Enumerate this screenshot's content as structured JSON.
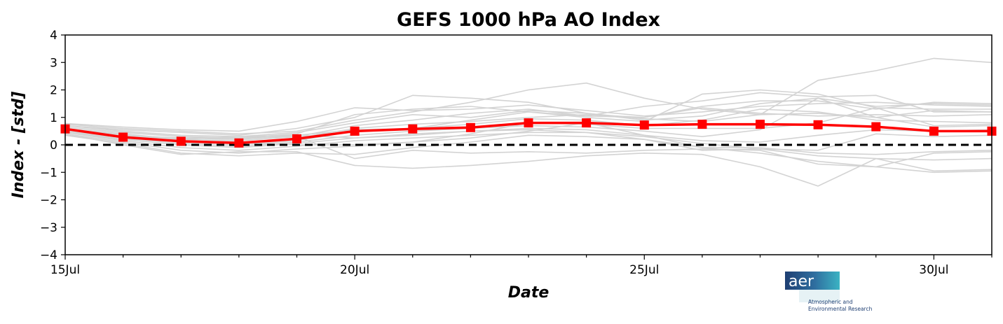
{
  "chart_data": {
    "type": "line",
    "title": "GEFS 1000 hPa AO Index",
    "xlabel": "Date",
    "ylabel": "Index - [std]",
    "x": [
      15,
      16,
      17,
      18,
      19,
      20,
      21,
      22,
      23,
      24,
      25,
      26,
      27,
      28,
      29,
      30,
      31
    ],
    "x_unit": "Jul",
    "xlim": [
      15,
      31
    ],
    "ylim": [
      -4,
      4
    ],
    "xticks_major": [
      {
        "value": 15,
        "label": "15Jul"
      },
      {
        "value": 20,
        "label": "20Jul"
      },
      {
        "value": 25,
        "label": "25Jul"
      },
      {
        "value": 30,
        "label": "30Jul"
      }
    ],
    "yticks": [
      {
        "value": 4,
        "label": "4"
      },
      {
        "value": 3,
        "label": "3"
      },
      {
        "value": 2,
        "label": "2"
      },
      {
        "value": 1,
        "label": "1"
      },
      {
        "value": 0,
        "label": "0"
      },
      {
        "value": -1,
        "label": "−1"
      },
      {
        "value": -2,
        "label": "−2"
      },
      {
        "value": -3,
        "label": "−3"
      },
      {
        "value": -4,
        "label": "−4"
      }
    ],
    "reference_line": {
      "y": 0,
      "style": "dashed",
      "color": "#000000"
    },
    "mean_series": {
      "color": "#ff0000",
      "marker": "square",
      "values": [
        0.58,
        0.28,
        0.13,
        0.07,
        0.22,
        0.5,
        0.58,
        0.63,
        0.8,
        0.8,
        0.72,
        0.75,
        0.75,
        0.73,
        0.66,
        0.5,
        0.5
      ]
    },
    "ensemble_color": "#d3d3d3",
    "ensemble_members": [
      [
        0.78,
        0.65,
        0.55,
        0.5,
        0.85,
        1.35,
        1.25,
        1.3,
        1.45,
        1.25,
        1.05,
        1.2,
        1.4,
        1.5,
        1.55,
        1.45,
        1.4
      ],
      [
        0.7,
        0.55,
        0.45,
        0.35,
        0.6,
        1.0,
        1.8,
        1.7,
        1.55,
        1.15,
        0.9,
        1.05,
        1.5,
        1.7,
        1.4,
        1.5,
        1.45
      ],
      [
        0.75,
        0.6,
        0.5,
        0.4,
        0.5,
        0.9,
        1.2,
        1.55,
        2.0,
        2.25,
        1.7,
        1.3,
        1.1,
        2.35,
        2.7,
        3.15,
        3.0
      ],
      [
        0.65,
        0.45,
        0.3,
        0.25,
        0.4,
        1.1,
        1.3,
        1.4,
        1.2,
        1.0,
        0.85,
        1.85,
        2.0,
        1.85,
        1.35,
        1.3,
        1.3
      ],
      [
        0.6,
        0.4,
        0.2,
        0.15,
        0.3,
        0.7,
        0.9,
        1.15,
        1.3,
        1.05,
        1.4,
        1.6,
        1.9,
        1.75,
        1.8,
        1.2,
        1.2
      ],
      [
        0.55,
        0.35,
        0.15,
        0.05,
        0.25,
        0.6,
        0.75,
        0.85,
        1.0,
        1.1,
        1.0,
        1.35,
        1.15,
        1.05,
        1.1,
        1.05,
        1.1
      ],
      [
        0.5,
        0.3,
        0.1,
        0.0,
        0.15,
        0.5,
        0.6,
        0.75,
        0.95,
        0.9,
        0.7,
        0.9,
        1.3,
        1.2,
        0.9,
        0.85,
        0.8
      ],
      [
        0.5,
        0.25,
        0.05,
        -0.05,
        0.1,
        0.35,
        0.5,
        0.6,
        0.7,
        0.65,
        0.5,
        0.3,
        0.55,
        1.7,
        1.0,
        0.65,
        0.7
      ],
      [
        0.45,
        0.2,
        0.0,
        -0.1,
        0.05,
        0.25,
        0.35,
        0.5,
        0.6,
        0.55,
        0.35,
        0.15,
        0.1,
        0.35,
        0.55,
        0.5,
        0.55
      ],
      [
        0.45,
        0.15,
        -0.1,
        -0.2,
        -0.05,
        0.15,
        0.25,
        0.35,
        0.45,
        0.45,
        0.3,
        0.05,
        -0.15,
        -0.2,
        0.4,
        0.3,
        0.35
      ],
      [
        0.4,
        0.1,
        -0.2,
        -0.3,
        -0.15,
        -0.05,
        0.1,
        0.25,
        0.5,
        0.8,
        0.35,
        -0.1,
        -0.3,
        -0.6,
        -0.8,
        -0.3,
        -0.25
      ],
      [
        0.35,
        0.05,
        -0.3,
        -0.4,
        -0.3,
        -0.35,
        -0.1,
        0.1,
        0.35,
        0.3,
        0.2,
        -0.2,
        -0.15,
        -0.4,
        -0.5,
        -0.55,
        -0.5
      ],
      [
        0.4,
        0.0,
        -0.35,
        -0.25,
        -0.25,
        -0.75,
        -0.85,
        -0.75,
        -0.6,
        -0.4,
        -0.3,
        -0.35,
        -0.8,
        -1.5,
        -0.5,
        -0.95,
        -0.9
      ],
      [
        0.5,
        0.2,
        0.2,
        0.3,
        0.35,
        0.25,
        0.4,
        0.5,
        0.55,
        0.45,
        0.2,
        -0.1,
        -0.1,
        -0.3,
        -0.35,
        -0.25,
        -0.2
      ],
      [
        0.6,
        0.3,
        0.25,
        0.25,
        0.3,
        -0.5,
        -0.2,
        -0.3,
        -0.25,
        -0.3,
        -0.2,
        -0.15,
        -0.2,
        -0.7,
        -0.8,
        -1.0,
        -0.95
      ],
      [
        0.55,
        0.25,
        0.15,
        0.1,
        0.0,
        0.0,
        0.1,
        0.4,
        0.8,
        0.75,
        0.6,
        0.6,
        0.6,
        0.8,
        1.35,
        0.7,
        0.75
      ],
      [
        0.7,
        0.5,
        0.35,
        0.3,
        0.45,
        0.8,
        1.1,
        1.0,
        1.25,
        1.15,
        0.95,
        0.85,
        1.1,
        1.15,
        1.0,
        1.25,
        1.2
      ],
      [
        0.6,
        0.35,
        0.25,
        0.2,
        0.35,
        0.55,
        0.6,
        0.9,
        1.2,
        1.05,
        1.0,
        1.4,
        1.6,
        1.6,
        1.3,
        1.55,
        1.5
      ]
    ]
  },
  "logo": {
    "word": "aer",
    "line1": "Atmospheric and",
    "line2": "Environmental Research",
    "color": "#1f3f73",
    "accent": "#3bb3c3"
  }
}
